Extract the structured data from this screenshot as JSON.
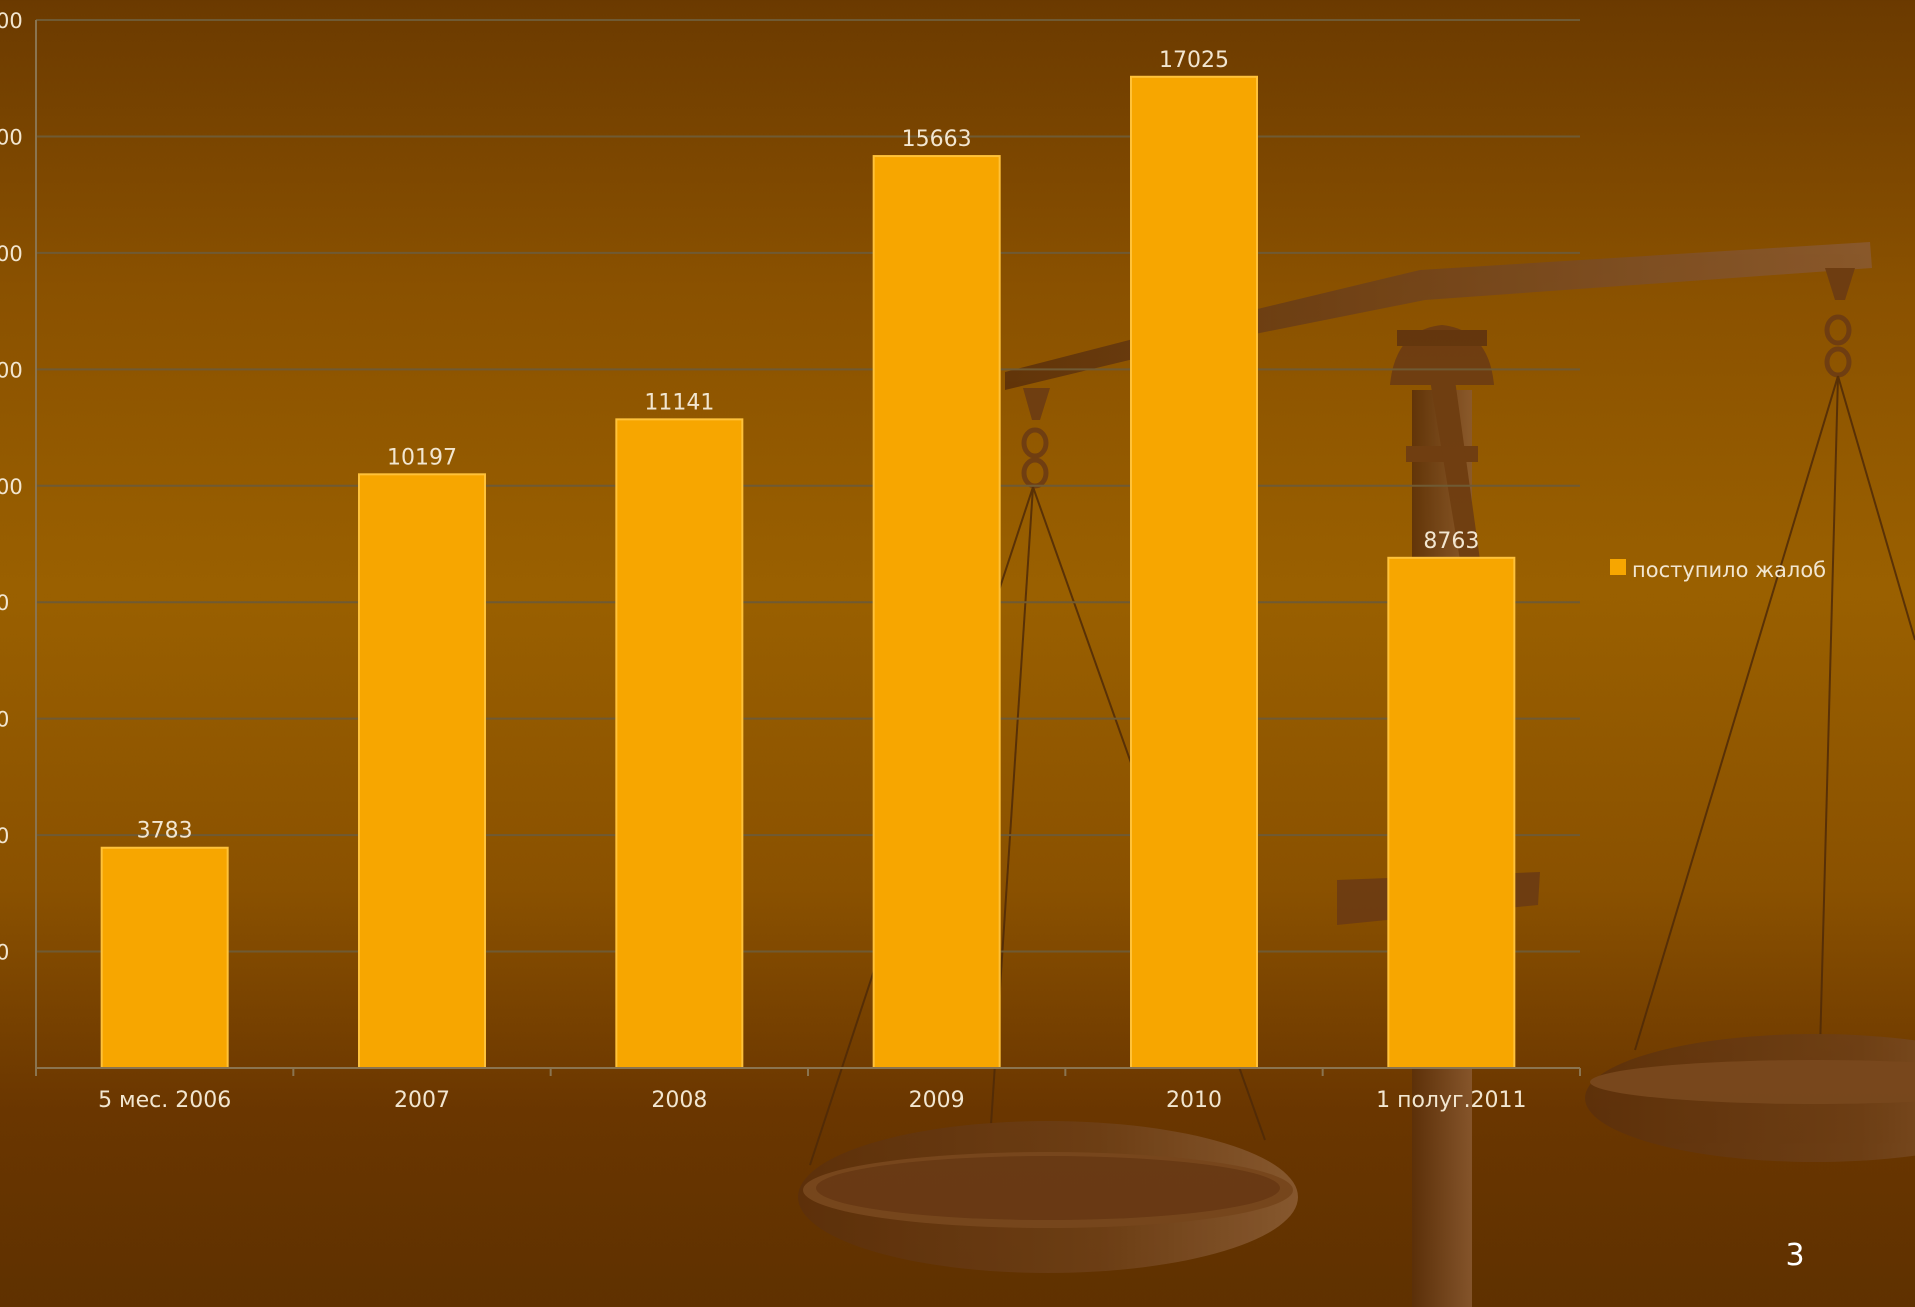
{
  "slide": {
    "page_number": "3"
  },
  "colors": {
    "bar": "#f7a600",
    "bar_edge": "#ffc23a",
    "grid": "#6f5a34",
    "axis": "#8a7450",
    "text": "#f2e6d0",
    "scale_dark": "#5a2f0a",
    "scale_light": "#8a5a32"
  },
  "decoration": {
    "background_image": "scales-of-justice"
  },
  "chart_data": {
    "type": "bar",
    "categories": [
      "5 мес. 2006",
      "2007",
      "2008",
      "2009",
      "2010",
      "1 полуг.2011"
    ],
    "series": [
      {
        "name": "поступило жалоб",
        "values": [
          3783,
          10197,
          11141,
          15663,
          17025,
          8763
        ]
      }
    ],
    "data_labels": [
      "3783",
      "10197",
      "11141",
      "15663",
      "17025",
      "8763"
    ],
    "y_tick_labels": [
      "00",
      "00",
      "00",
      "00",
      "00",
      "0",
      "0",
      "0",
      "0"
    ],
    "ylim": [
      0,
      18000
    ],
    "y_ticks": [
      2000,
      4000,
      6000,
      8000,
      10000,
      12000,
      14000,
      16000,
      18000
    ],
    "grid": true,
    "legend_position": "right",
    "title": "",
    "xlabel": "",
    "ylabel": ""
  }
}
